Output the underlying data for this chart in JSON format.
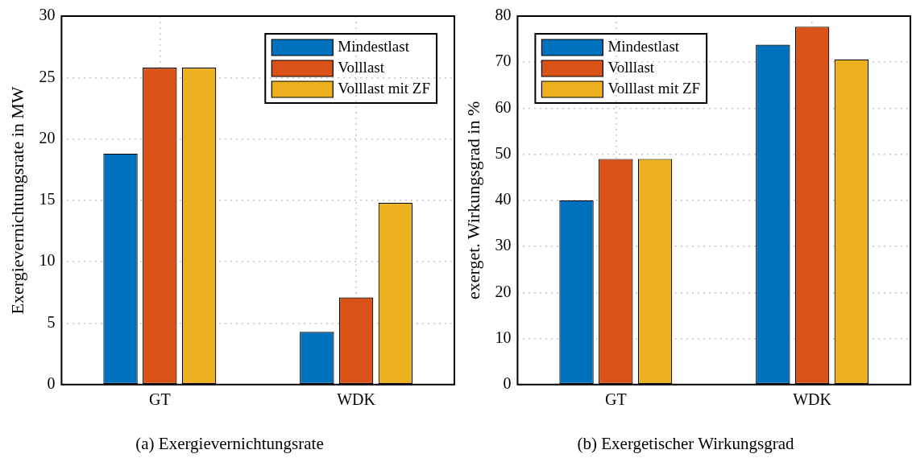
{
  "chart_data": [
    {
      "type": "bar",
      "title": "(a) Exergievernichtungsrate",
      "ylabel": "Exergievernichtungsrate in MW",
      "categories": [
        "GT",
        "WDK"
      ],
      "series": [
        {
          "name": "Mindestlast",
          "color": "#0072bd",
          "values": [
            18.8,
            4.3
          ]
        },
        {
          "name": "Volllast",
          "color": "#d95319",
          "values": [
            25.8,
            7.1
          ]
        },
        {
          "name": "Volllast mit ZF",
          "color": "#edb120",
          "values": [
            25.8,
            14.8
          ]
        }
      ],
      "ylim": [
        0,
        30
      ],
      "yticks": [
        0,
        5,
        10,
        15,
        20,
        25,
        30
      ],
      "grid": true,
      "legend": "top right"
    },
    {
      "type": "bar",
      "title": "(b) Exergetischer Wirkungsgrad",
      "ylabel": "exerget. Wirkungsgrad in %",
      "categories": [
        "GT",
        "WDK"
      ],
      "series": [
        {
          "name": "Mindestlast",
          "color": "#0072bd",
          "values": [
            40.0,
            73.8
          ]
        },
        {
          "name": "Volllast",
          "color": "#d95319",
          "values": [
            49.0,
            77.7
          ]
        },
        {
          "name": "Volllast mit ZF",
          "color": "#edb120",
          "values": [
            49.0,
            70.6
          ]
        }
      ],
      "ylim": [
        0,
        80
      ],
      "yticks": [
        0,
        10,
        20,
        30,
        40,
        50,
        60,
        70,
        80
      ],
      "grid": true,
      "legend": "top left"
    }
  ]
}
